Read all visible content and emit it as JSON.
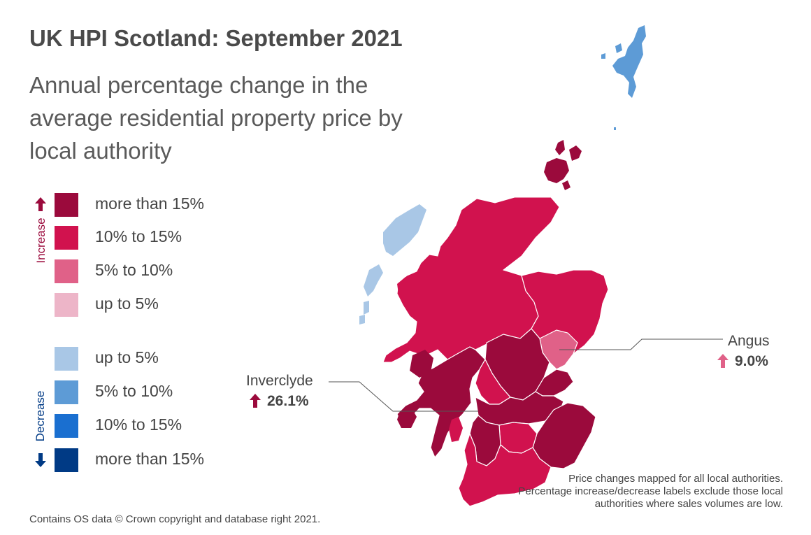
{
  "title": "UK HPI Scotland: September 2021",
  "subtitle": "Annual percentage change in the average residential property price by local authority",
  "legend": {
    "increase_label": "Increase",
    "decrease_label": "Decrease",
    "increase": [
      {
        "label": "more than 15%",
        "color": "#9b0a3c"
      },
      {
        "label": "10% to 15%",
        "color": "#d1124e"
      },
      {
        "label": "5% to 10%",
        "color": "#e06188"
      },
      {
        "label": "up to 5%",
        "color": "#edb5c8"
      }
    ],
    "decrease": [
      {
        "label": "up to 5%",
        "color": "#a9c7e6"
      },
      {
        "label": "5% to 10%",
        "color": "#5d9bd6"
      },
      {
        "label": "10% to 15%",
        "color": "#1a6fd0"
      },
      {
        "label": "more than 15%",
        "color": "#003a85"
      }
    ]
  },
  "callouts": [
    {
      "name": "Inverclyde",
      "value": "26.1%",
      "direction": "increase",
      "color": "#9b0a3c"
    },
    {
      "name": "Angus",
      "value": "9.0%",
      "direction": "increase",
      "color": "#e06188"
    }
  ],
  "note": "Price changes mapped for all local authorities. Percentage increase/decrease labels exclude those local authorities where sales volumes are low.",
  "footer": "Contains OS data © Crown copyright and database right 2021.",
  "colors": {
    "dark_red": "#9b0a3c",
    "red": "#d1124e",
    "pink": "#e06188",
    "light_blue": "#a9c7e6",
    "mid_blue": "#5d9bd6",
    "border": "#ffffff",
    "leader": "#555555"
  },
  "regions": [
    {
      "name": "Shetland Islands",
      "band": "5% to 10% decrease"
    },
    {
      "name": "Orkney Islands",
      "band": "more than 15% increase"
    },
    {
      "name": "Na h-Eileanan Siar",
      "band": "up to 5% decrease"
    },
    {
      "name": "Highland",
      "band": "10% to 15% increase"
    },
    {
      "name": "Aberdeenshire",
      "band": "10% to 15% increase"
    },
    {
      "name": "Angus",
      "band": "5% to 10% increase"
    },
    {
      "name": "Perth and Kinross",
      "band": "more than 15% increase"
    },
    {
      "name": "Argyll and Bute",
      "band": "more than 15% increase"
    },
    {
      "name": "Inverclyde",
      "band": "more than 15% increase"
    },
    {
      "name": "Scottish Borders",
      "band": "more than 15% increase"
    },
    {
      "name": "Dumfries and Galloway",
      "band": "10% to 15% increase"
    }
  ]
}
